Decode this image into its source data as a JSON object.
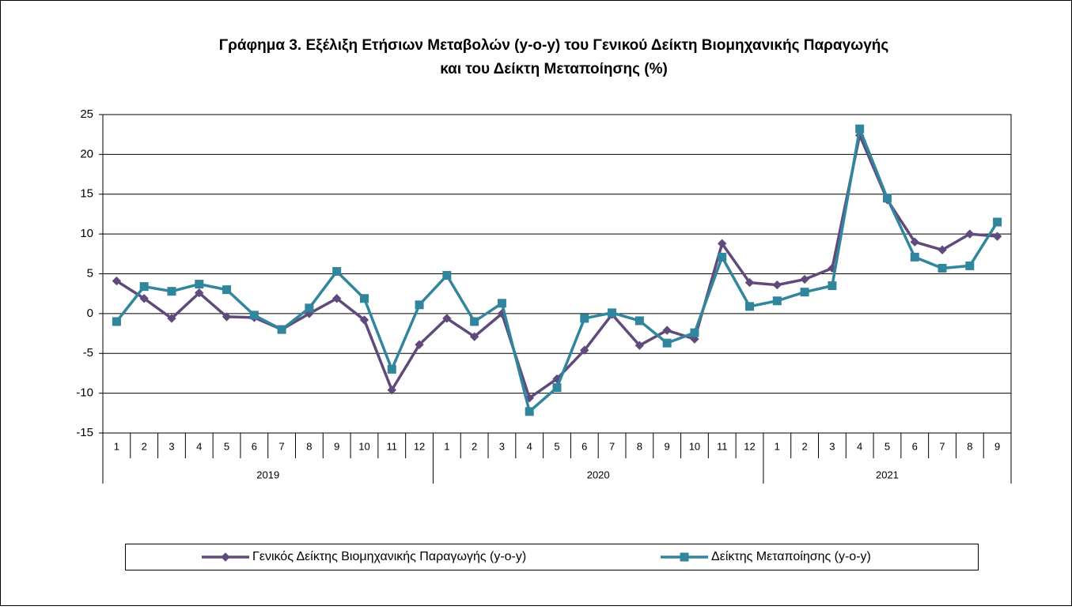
{
  "chart_data": {
    "type": "line",
    "title": [
      "Γράφημα 3. Εξέλιξη Ετήσιων Μεταβολών (y-o-y) του Γενικού Δείκτη Βιομηχανικής Παραγωγής",
      "και του Δείκτη Μεταποίησης (%)"
    ],
    "categories": [
      "1",
      "2",
      "3",
      "4",
      "5",
      "6",
      "7",
      "8",
      "9",
      "10",
      "11",
      "12",
      "1",
      "2",
      "3",
      "4",
      "5",
      "6",
      "7",
      "8",
      "9",
      "10",
      "11",
      "12",
      "1",
      "2",
      "3",
      "4",
      "5",
      "6",
      "7",
      "8",
      "9"
    ],
    "category_groups": [
      "2019",
      "2020",
      "2021"
    ],
    "series": [
      {
        "name": "Γενικός Δείκτης Βιομηχανικής Παραγωγής (y-o-y)",
        "color": "#604a7b",
        "marker": "diamond",
        "values": [
          4.1,
          1.9,
          -0.6,
          2.6,
          -0.4,
          -0.5,
          -2.0,
          0.0,
          1.9,
          -0.8,
          -9.6,
          -3.9,
          -0.6,
          -2.9,
          0.0,
          -10.6,
          -8.2,
          -4.6,
          -0.1,
          -4.0,
          -2.1,
          -3.2,
          8.8,
          3.9,
          3.6,
          4.3,
          5.7,
          22.4,
          14.3,
          9.0,
          8.0,
          10.0,
          9.7
        ]
      },
      {
        "name": "Δείκτης Μεταποίησης (y-o-y)",
        "color": "#31859c",
        "marker": "square",
        "values": [
          -1.0,
          3.4,
          2.8,
          3.7,
          3.0,
          -0.2,
          -2.0,
          0.7,
          5.3,
          1.9,
          -7.0,
          1.1,
          4.8,
          -1.0,
          1.3,
          -12.3,
          -9.3,
          -0.6,
          0.1,
          -0.9,
          -3.7,
          -2.4,
          7.1,
          0.9,
          1.6,
          2.7,
          3.5,
          23.2,
          14.5,
          7.1,
          5.7,
          6.0,
          11.5
        ]
      }
    ],
    "ylim": [
      -15,
      25
    ],
    "yticks": [
      -15,
      -10,
      -5,
      0,
      5,
      10,
      15,
      20,
      25
    ],
    "grid": true
  }
}
